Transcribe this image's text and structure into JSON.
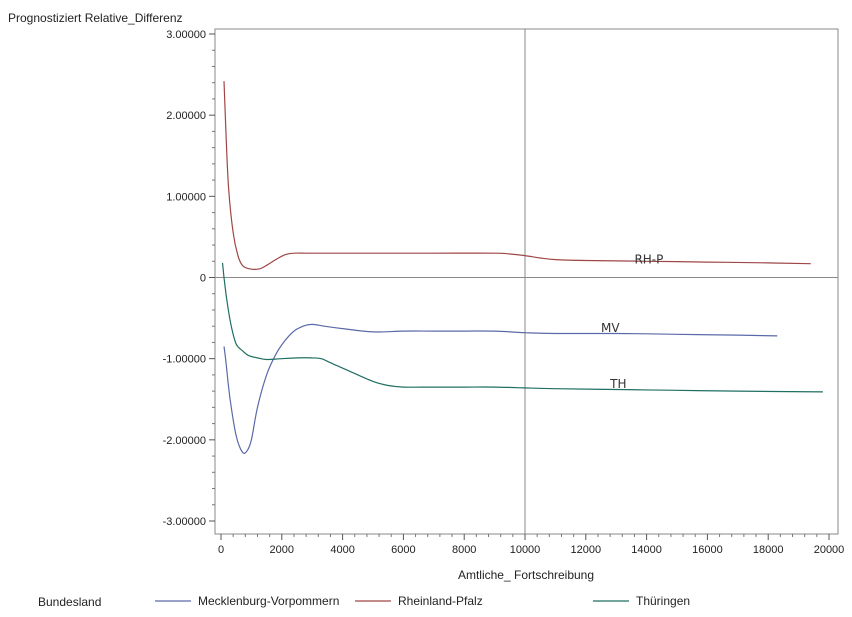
{
  "chart_data": {
    "type": "line",
    "ylabel": "Prognostiziert Relative_Differenz",
    "xlabel": "Amtliche_ Fortschreibung",
    "xlim": [
      0,
      20000
    ],
    "ylim": [
      -3,
      3
    ],
    "xticks": [
      0,
      2000,
      4000,
      6000,
      8000,
      10000,
      12000,
      14000,
      16000,
      18000,
      20000
    ],
    "yticks": [
      {
        "value": 3,
        "label": "3.00000"
      },
      {
        "value": 2,
        "label": "2.00000"
      },
      {
        "value": 1,
        "label": "1.00000"
      },
      {
        "value": 0,
        "label": "0"
      },
      {
        "value": -1,
        "label": "-1.00000"
      },
      {
        "value": -2,
        "label": "-2.00000"
      },
      {
        "value": -3,
        "label": "-3.00000"
      }
    ],
    "reference_lines": {
      "x": 10000,
      "y": 0
    },
    "grid": false,
    "legend": {
      "title": "Bundesland",
      "position": "bottom"
    },
    "series": [
      {
        "name": "Mecklenburg-Vorpommern",
        "color": "#5a6aa8",
        "x": [
          100,
          150,
          300,
          500,
          700,
          850,
          1000,
          1200,
          1500,
          1800,
          2100,
          2400,
          2700,
          2900,
          3100,
          3400,
          4000,
          5000,
          6000,
          7000,
          8000,
          9000,
          10000,
          11000,
          13000,
          15000,
          17000,
          18300
        ],
        "y": [
          -0.85,
          -1.0,
          -1.5,
          -1.95,
          -2.15,
          -2.14,
          -2.0,
          -1.6,
          -1.2,
          -0.95,
          -0.78,
          -0.66,
          -0.6,
          -0.58,
          -0.58,
          -0.6,
          -0.63,
          -0.67,
          -0.66,
          -0.66,
          -0.66,
          -0.66,
          -0.68,
          -0.69,
          -0.69,
          -0.7,
          -0.71,
          -0.72
        ]
      },
      {
        "name": "Rheinland-Pfalz",
        "color": "#a04646",
        "x": [
          100,
          150,
          250,
          400,
          550,
          700,
          900,
          1100,
          1300,
          1500,
          1800,
          2100,
          2400,
          3000,
          5000,
          7000,
          9000,
          9500,
          10000,
          10500,
          11000,
          12000,
          14000,
          16000,
          18000,
          19400
        ],
        "y": [
          2.42,
          1.9,
          1.1,
          0.55,
          0.28,
          0.15,
          0.11,
          0.1,
          0.11,
          0.15,
          0.22,
          0.28,
          0.3,
          0.3,
          0.3,
          0.3,
          0.3,
          0.29,
          0.27,
          0.24,
          0.22,
          0.21,
          0.2,
          0.19,
          0.18,
          0.17
        ]
      },
      {
        "name": "Thüringen",
        "color": "#1f6f62",
        "x": [
          50,
          100,
          200,
          350,
          500,
          700,
          900,
          1200,
          1500,
          2000,
          2500,
          3000,
          3300,
          3600,
          4200,
          5000,
          5500,
          6000,
          7000,
          8000,
          9000,
          10000,
          11000,
          13000,
          15000,
          17000,
          19800
        ],
        "y": [
          0.18,
          0.0,
          -0.3,
          -0.62,
          -0.82,
          -0.9,
          -0.96,
          -0.99,
          -1.01,
          -1.0,
          -0.99,
          -0.99,
          -1.0,
          -1.05,
          -1.15,
          -1.28,
          -1.33,
          -1.35,
          -1.35,
          -1.35,
          -1.35,
          -1.36,
          -1.37,
          -1.38,
          -1.39,
          -1.4,
          -1.41
        ]
      }
    ],
    "annotations": [
      {
        "text": "RH-P",
        "x": 13600,
        "y": 0.22
      },
      {
        "text": "MV",
        "x": 12500,
        "y": -0.62
      },
      {
        "text": "TH",
        "x": 12800,
        "y": -1.31
      }
    ]
  }
}
